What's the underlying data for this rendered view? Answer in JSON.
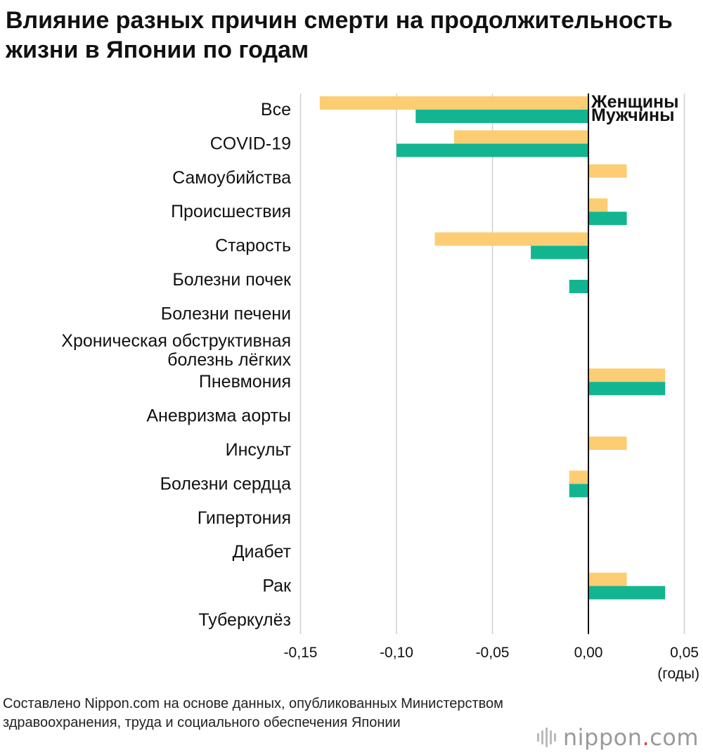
{
  "title": "Влияние разных причин смерти на продолжительность жизни в Японии по годам",
  "source_note": "Составлено Nippon.com на основе данных, опубликованных Министерством здравоохранения, труда и социального обеспечения Японии",
  "logo": {
    "text": "nippon",
    "dot": ".",
    "suffix": "com"
  },
  "colors": {
    "women": "#fccd73",
    "men": "#13b591",
    "grid": "#cfcfcf",
    "axis": "#111111"
  },
  "chart_data": {
    "type": "bar",
    "orientation": "horizontal",
    "xlabel": "(годы)",
    "xlim": [
      -0.15,
      0.05
    ],
    "xticks": [
      -0.15,
      -0.1,
      -0.05,
      0.0,
      0.05
    ],
    "xtick_labels": [
      "-0,15",
      "-0,10",
      "-0,05",
      "0,00",
      "0,05"
    ],
    "grid": true,
    "legend_placement": "top-right",
    "categories": [
      "Все",
      "COVID-19",
      "Самоубийства",
      "Происшествия",
      "Старость",
      "Болезни почек",
      "Болезни печени",
      "Хроническая обструктивная болезнь лёгких",
      "Пневмония",
      "Аневризма аорты",
      "Инсульт",
      "Болезни сердца",
      "Гипертония",
      "Диабет",
      "Рак",
      "Туберкулёз"
    ],
    "series": [
      {
        "name": "Женщины",
        "values": [
          -0.14,
          -0.07,
          0.02,
          0.01,
          -0.08,
          0,
          0,
          0,
          0.04,
          0,
          0.02,
          -0.01,
          0,
          0,
          0.02,
          0
        ]
      },
      {
        "name": "Мужчины",
        "values": [
          -0.09,
          -0.1,
          0,
          0.02,
          -0.03,
          -0.01,
          0,
          0,
          0.04,
          0,
          0,
          -0.01,
          0,
          0,
          0.04,
          0
        ]
      }
    ]
  }
}
